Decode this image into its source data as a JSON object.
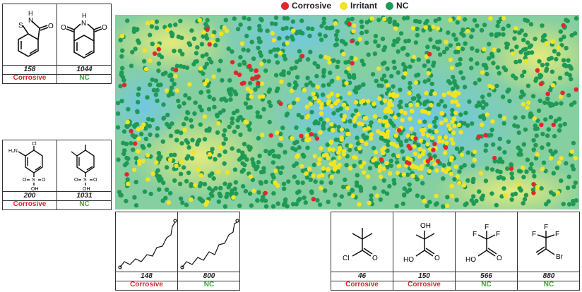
{
  "legend": [
    {
      "label": "Corrosive",
      "color": "#e3262e"
    },
    {
      "label": "Irritant",
      "color": "#f2e324"
    },
    {
      "label": "NC",
      "color": "#1e9a55"
    }
  ],
  "colors": {
    "corrosive": "#e3262e",
    "irritant": "#f2e324",
    "nc": "#1e9a55",
    "label_corrosive": "#d9262c",
    "label_nc": "#3aa935"
  },
  "panels": {
    "top_left": [
      {
        "id": "158",
        "class": "Corrosive"
      },
      {
        "id": "1044",
        "class": "NC"
      }
    ],
    "mid_left": [
      {
        "id": "200",
        "class": "Corrosive",
        "atoms": [
          "H₂N",
          "Cl",
          "O",
          "S",
          "O",
          "OH"
        ]
      },
      {
        "id": "1031",
        "class": "NC",
        "atoms": [
          "O",
          "S",
          "O",
          "OH"
        ]
      }
    ],
    "bottom_mid": [
      {
        "id": "148",
        "class": "Corrosive"
      },
      {
        "id": "800",
        "class": "NC"
      }
    ],
    "bottom_right": [
      {
        "id": "46",
        "class": "Corrosive",
        "atoms": [
          "Cl",
          "O"
        ]
      },
      {
        "id": "150",
        "class": "Corrosive",
        "atoms": [
          "OH",
          "HO",
          "O"
        ]
      },
      {
        "id": "566",
        "class": "NC",
        "atoms": [
          "F",
          "F",
          "F",
          "HO",
          "O"
        ]
      },
      {
        "id": "880",
        "class": "NC",
        "atoms": [
          "F",
          "F",
          "F",
          "Br"
        ]
      }
    ]
  },
  "atoms_158": [
    "S",
    "N",
    "H",
    "O"
  ],
  "atoms_1044": [
    "O",
    "N",
    "O",
    "H"
  ],
  "map_points": {
    "corrosive_count": 60,
    "irritant_count": 420,
    "nc_count": 1350
  }
}
